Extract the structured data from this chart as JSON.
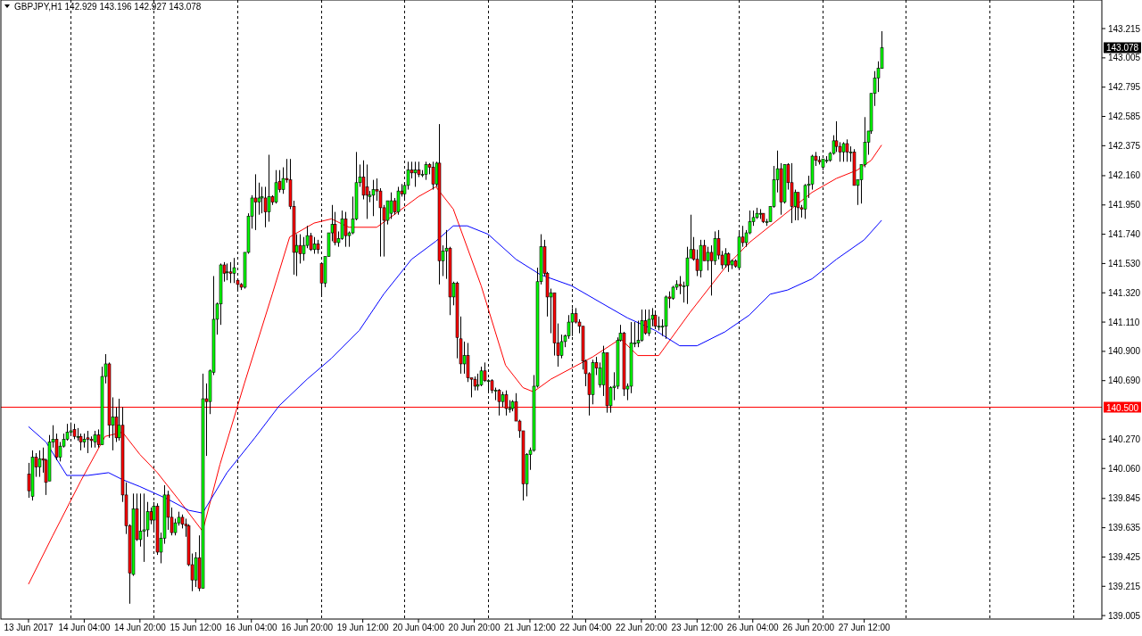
{
  "chart_data": {
    "type": "candlestick",
    "title": "GBPJPY,H1 142.929 143.196 142.927 143.078",
    "categories": [
      "13 Jun 2017",
      null,
      null,
      null,
      null,
      null,
      null,
      null,
      null,
      null,
      null,
      null,
      null,
      null,
      null,
      null,
      "14 Jun 04:00",
      null,
      null,
      null,
      null,
      null,
      null,
      null,
      null,
      null,
      null,
      null,
      null,
      null,
      null,
      null,
      "14 Jun 20:00",
      null,
      null,
      null,
      null,
      null,
      null,
      null,
      null,
      null,
      null,
      null,
      null,
      null,
      null,
      null,
      "15 Jun 12:00",
      null,
      null,
      null,
      null,
      null,
      null,
      null,
      null,
      null,
      null,
      null,
      null,
      null,
      null,
      null,
      "16 Jun 04:00",
      null,
      null,
      null,
      null,
      null,
      null,
      null,
      null,
      null,
      null,
      null,
      null,
      null,
      null,
      null,
      "16 Jun 20:00",
      null,
      null,
      null,
      null,
      null,
      null,
      null,
      null,
      null,
      null,
      null,
      null,
      null,
      null,
      null,
      "19 Jun 12:00",
      null,
      null,
      null,
      null,
      null,
      null,
      null,
      null,
      null,
      null,
      null,
      null,
      null,
      null,
      null,
      "20 Jun 04:00",
      null,
      null,
      null,
      null,
      null,
      null,
      null,
      null,
      null,
      null,
      null,
      null,
      null,
      null,
      null,
      "20 Jun 20:00",
      null,
      null,
      null,
      null,
      null,
      null,
      null,
      null,
      null,
      null,
      null,
      null,
      null,
      null,
      null,
      "21 Jun 12:00",
      null,
      null,
      null,
      null,
      null,
      null,
      null,
      null,
      null,
      null,
      null,
      null,
      null,
      null,
      null,
      "22 Jun 04:00",
      null,
      null,
      null,
      null,
      null,
      null,
      null,
      null,
      null,
      null,
      null,
      null,
      null,
      null,
      null,
      "22 Jun 20:00",
      null,
      null,
      null,
      null,
      null,
      null,
      null,
      null,
      null,
      null,
      null,
      null,
      null,
      null,
      null,
      "23 Jun 12:00",
      null,
      null,
      null,
      null,
      null,
      null,
      null,
      null,
      null,
      null,
      null,
      null,
      null,
      null,
      null,
      "26 Jun 04:00",
      null,
      null,
      null,
      null,
      null,
      null,
      null,
      null,
      null,
      null,
      null,
      null,
      null,
      null,
      null,
      "26 Jun 20:00",
      null,
      null,
      null,
      null,
      null,
      null,
      null,
      null,
      null,
      null,
      null,
      null,
      null,
      null,
      null,
      "27 Jun 12:00",
      null,
      null,
      null,
      null,
      null,
      null,
      null,
      null,
      null,
      null,
      null,
      null,
      null,
      null,
      null,
      null,
      null,
      null,
      null,
      null,
      null,
      null,
      null,
      null,
      null,
      null,
      null,
      null,
      null,
      null,
      null,
      null,
      null,
      null,
      null,
      null,
      null,
      null,
      null,
      null,
      null,
      null,
      null,
      null,
      null,
      null,
      null,
      null,
      null,
      null,
      null,
      null,
      null,
      null,
      null,
      null,
      null,
      null,
      null,
      null,
      null,
      null,
      null,
      null,
      null,
      null,
      null,
      null
    ],
    "ohlc": [
      [
        140.02,
        140.1,
        139.85,
        139.9
      ],
      [
        139.86,
        140.19,
        139.83,
        140.14
      ],
      [
        140.14,
        140.17,
        140.0,
        140.07
      ],
      [
        140.07,
        140.19,
        140.0,
        140.13
      ],
      [
        140.13,
        140.21,
        140.03,
        140.12
      ],
      [
        140.12,
        140.13,
        139.87,
        139.96
      ],
      [
        139.97,
        140.3,
        139.97,
        140.25
      ],
      [
        140.25,
        140.37,
        140.21,
        140.27
      ],
      [
        140.27,
        140.31,
        140.12,
        140.14
      ],
      [
        140.14,
        140.25,
        140.11,
        140.22
      ],
      [
        140.22,
        140.31,
        140.21,
        140.27
      ],
      [
        140.27,
        140.38,
        140.26,
        140.32
      ],
      [
        140.32,
        140.39,
        140.3,
        140.33
      ],
      [
        140.34,
        140.38,
        140.27,
        140.29
      ],
      [
        140.29,
        140.35,
        140.26,
        140.29
      ],
      [
        140.29,
        140.31,
        140.19,
        140.25
      ],
      [
        140.25,
        140.31,
        140.21,
        140.27
      ],
      [
        140.28,
        140.33,
        140.17,
        140.27
      ],
      [
        140.27,
        140.29,
        140.21,
        140.26
      ],
      [
        140.25,
        140.33,
        140.21,
        140.3
      ],
      [
        140.3,
        140.34,
        140.21,
        140.23
      ],
      [
        140.23,
        140.79,
        140.23,
        140.72
      ],
      [
        140.72,
        140.88,
        140.67,
        140.81
      ],
      [
        140.81,
        140.82,
        140.28,
        140.37
      ],
      [
        140.37,
        140.57,
        140.19,
        140.43
      ],
      [
        140.43,
        140.5,
        140.25,
        140.28
      ],
      [
        140.28,
        140.56,
        140.26,
        140.37
      ],
      [
        140.37,
        140.5,
        139.82,
        139.87
      ],
      [
        139.87,
        139.96,
        139.59,
        139.65
      ],
      [
        139.65,
        139.66,
        139.09,
        139.31
      ],
      [
        139.3,
        139.88,
        139.29,
        139.77
      ],
      [
        139.77,
        139.88,
        139.54,
        139.55
      ],
      [
        139.55,
        139.88,
        139.5,
        139.61
      ],
      [
        139.61,
        139.88,
        139.39,
        139.62
      ],
      [
        139.62,
        139.82,
        139.57,
        139.75
      ],
      [
        139.75,
        139.78,
        139.66,
        139.69
      ],
      [
        139.69,
        139.82,
        139.62,
        139.79
      ],
      [
        139.79,
        139.81,
        139.44,
        139.46
      ],
      [
        139.46,
        139.6,
        139.38,
        139.56
      ],
      [
        139.56,
        139.94,
        139.52,
        139.87
      ],
      [
        139.87,
        139.9,
        139.62,
        139.71
      ],
      [
        139.71,
        139.78,
        139.58,
        139.6
      ],
      [
        139.6,
        139.7,
        139.58,
        139.67
      ],
      [
        139.67,
        139.75,
        139.65,
        139.71
      ],
      [
        139.71,
        139.73,
        139.63,
        139.66
      ],
      [
        139.66,
        139.7,
        139.57,
        139.65
      ],
      [
        139.65,
        139.66,
        139.36,
        139.37
      ],
      [
        139.37,
        139.45,
        139.18,
        139.26
      ],
      [
        139.26,
        139.46,
        139.21,
        139.42
      ],
      [
        139.42,
        139.58,
        139.18,
        139.2
      ],
      [
        139.2,
        140.74,
        139.2,
        140.56
      ],
      [
        140.56,
        140.67,
        140.15,
        140.54
      ],
      [
        140.54,
        140.77,
        140.45,
        140.76
      ],
      [
        140.75,
        141.44,
        140.73,
        141.13
      ],
      [
        141.13,
        141.25,
        141.02,
        141.24
      ],
      [
        141.24,
        141.53,
        141.09,
        141.52
      ],
      [
        141.52,
        141.54,
        141.4,
        141.46
      ],
      [
        141.47,
        141.53,
        141.41,
        141.47
      ],
      [
        141.47,
        141.54,
        141.39,
        141.46
      ],
      [
        141.46,
        141.57,
        141.39,
        141.5
      ],
      [
        141.41,
        141.42,
        141.33,
        141.38
      ],
      [
        141.38,
        141.39,
        141.34,
        141.36
      ],
      [
        141.36,
        141.61,
        141.35,
        141.61
      ],
      [
        141.61,
        141.89,
        141.6,
        141.87
      ],
      [
        141.87,
        142.02,
        141.78,
        142.0
      ],
      [
        142.0,
        142.17,
        141.77,
        141.97
      ],
      [
        141.97,
        142.11,
        141.88,
        142.0
      ],
      [
        142.0,
        142.08,
        141.89,
        142.01
      ],
      [
        142.0,
        142.08,
        141.79,
        141.9
      ],
      [
        141.9,
        142.31,
        141.83,
        142.01
      ],
      [
        142.01,
        142.02,
        141.95,
        141.97
      ],
      [
        141.97,
        142.2,
        141.96,
        142.11
      ],
      [
        142.12,
        142.2,
        142.04,
        142.06
      ],
      [
        142.06,
        142.22,
        142.03,
        142.14
      ],
      [
        142.14,
        142.28,
        142.11,
        142.13
      ],
      [
        142.13,
        142.28,
        141.92,
        141.94
      ],
      [
        141.94,
        141.98,
        141.45,
        141.61
      ],
      [
        141.61,
        141.74,
        141.44,
        141.66
      ],
      [
        141.66,
        141.74,
        141.53,
        141.6
      ],
      [
        141.6,
        141.72,
        141.55,
        141.66
      ],
      [
        141.66,
        141.8,
        141.64,
        141.73
      ],
      [
        141.73,
        141.75,
        141.62,
        141.63
      ],
      [
        141.63,
        141.72,
        141.6,
        141.67
      ],
      [
        141.67,
        141.7,
        141.6,
        141.63
      ],
      [
        141.53,
        141.53,
        141.3,
        141.39
      ],
      [
        141.39,
        141.58,
        141.36,
        141.58
      ],
      [
        141.58,
        141.75,
        141.58,
        141.75
      ],
      [
        141.75,
        141.95,
        141.69,
        141.81
      ],
      [
        141.81,
        141.9,
        141.66,
        141.68
      ],
      [
        141.68,
        141.76,
        141.65,
        141.71
      ],
      [
        141.71,
        141.91,
        141.7,
        141.85
      ],
      [
        141.85,
        141.9,
        141.65,
        141.73
      ],
      [
        141.73,
        141.76,
        141.65,
        141.75
      ],
      [
        141.75,
        142.01,
        141.74,
        141.85
      ],
      [
        141.85,
        142.33,
        141.84,
        142.11
      ],
      [
        142.11,
        142.24,
        142.08,
        142.15
      ],
      [
        142.15,
        142.27,
        141.99,
        142.02
      ],
      [
        142.08,
        142.24,
        141.85,
        142.02
      ],
      [
        142.01,
        142.05,
        141.97,
        142.02
      ],
      [
        142.02,
        142.13,
        141.87,
        142.06
      ],
      [
        142.06,
        142.14,
        141.98,
        142.05
      ],
      [
        142.05,
        142.07,
        141.58,
        141.93
      ],
      [
        141.93,
        141.95,
        141.58,
        141.84
      ],
      [
        141.84,
        141.98,
        141.81,
        141.98
      ],
      [
        141.89,
        142.04,
        141.85,
        141.98
      ],
      [
        141.98,
        142.0,
        141.88,
        141.9
      ],
      [
        141.9,
        142.08,
        141.88,
        142.05
      ],
      [
        142.05,
        142.1,
        142.01,
        142.03
      ],
      [
        142.03,
        142.1,
        142.0,
        142.09
      ],
      [
        142.09,
        142.26,
        142.06,
        142.2
      ],
      [
        142.2,
        142.26,
        142.14,
        142.18
      ],
      [
        142.18,
        142.26,
        142.08,
        142.2
      ],
      [
        142.2,
        142.26,
        142.15,
        142.17
      ],
      [
        142.17,
        142.2,
        142.15,
        142.17
      ],
      [
        142.17,
        142.26,
        142.13,
        142.24
      ],
      [
        142.24,
        142.25,
        142.17,
        142.22
      ],
      [
        142.22,
        142.26,
        142.06,
        142.1
      ],
      [
        142.1,
        142.26,
        142.08,
        142.25
      ],
      [
        142.25,
        142.53,
        141.38,
        141.55
      ],
      [
        141.55,
        141.66,
        141.44,
        141.62
      ],
      [
        141.62,
        141.77,
        141.42,
        141.64
      ],
      [
        141.64,
        141.65,
        141.16,
        141.29
      ],
      [
        141.29,
        141.4,
        141.23,
        141.39
      ],
      [
        141.39,
        141.4,
        140.85,
        141.0
      ],
      [
        140.99,
        141.15,
        140.74,
        140.81
      ],
      [
        140.81,
        140.97,
        140.74,
        140.87
      ],
      [
        140.87,
        140.96,
        140.68,
        140.71
      ],
      [
        140.71,
        140.71,
        140.57,
        140.7
      ],
      [
        140.7,
        140.72,
        140.62,
        140.65
      ],
      [
        140.65,
        140.74,
        140.62,
        140.66
      ],
      [
        140.66,
        140.79,
        140.65,
        140.76
      ],
      [
        140.76,
        140.82,
        140.68,
        140.69
      ],
      [
        140.69,
        140.7,
        140.6,
        140.69
      ],
      [
        140.69,
        140.7,
        140.6,
        140.62
      ],
      [
        140.62,
        140.64,
        140.55,
        140.62
      ],
      [
        140.62,
        140.63,
        140.44,
        140.54
      ],
      [
        140.54,
        140.61,
        140.5,
        140.59
      ],
      [
        140.59,
        140.62,
        140.44,
        140.49
      ],
      [
        140.49,
        140.55,
        140.46,
        140.49
      ],
      [
        140.49,
        140.55,
        140.47,
        140.54
      ],
      [
        140.54,
        140.6,
        140.4,
        140.4
      ],
      [
        140.4,
        140.41,
        140.28,
        140.33
      ],
      [
        140.33,
        140.33,
        139.83,
        139.95
      ],
      [
        139.95,
        140.17,
        139.86,
        140.16
      ],
      [
        140.16,
        140.21,
        140.05,
        140.19
      ],
      [
        140.19,
        140.73,
        140.18,
        140.65
      ],
      [
        140.65,
        141.5,
        140.64,
        141.4
      ],
      [
        141.4,
        141.74,
        141.38,
        141.65
      ],
      [
        141.65,
        141.7,
        141.44,
        141.46
      ],
      [
        141.46,
        141.47,
        141.15,
        141.29
      ],
      [
        141.29,
        141.35,
        141.03,
        141.32
      ],
      [
        141.32,
        141.32,
        140.87,
        140.96
      ],
      [
        140.96,
        141.1,
        140.79,
        140.87
      ],
      [
        140.87,
        141.02,
        140.85,
        140.97
      ],
      [
        140.97,
        141.02,
        140.93,
        141.01
      ],
      [
        141.01,
        141.16,
        140.99,
        141.11
      ],
      [
        141.11,
        141.21,
        141.01,
        141.17
      ],
      [
        141.17,
        141.21,
        141.1,
        141.11
      ],
      [
        141.11,
        141.13,
        141.03,
        141.08
      ],
      [
        141.08,
        141.08,
        140.77,
        140.83
      ],
      [
        140.83,
        140.84,
        140.65,
        140.74
      ],
      [
        140.74,
        140.75,
        140.44,
        140.59
      ],
      [
        140.59,
        140.84,
        140.52,
        140.82
      ],
      [
        140.82,
        140.86,
        140.73,
        140.78
      ],
      [
        140.66,
        140.82,
        140.64,
        140.78
      ],
      [
        140.66,
        140.94,
        140.58,
        140.89
      ],
      [
        140.89,
        140.89,
        140.46,
        140.51
      ],
      [
        140.51,
        140.65,
        140.46,
        140.64
      ],
      [
        140.64,
        140.75,
        140.55,
        140.65
      ],
      [
        140.65,
        141.0,
        140.63,
        140.98
      ],
      [
        140.98,
        141.09,
        140.97,
        141.03
      ],
      [
        141.03,
        141.04,
        140.58,
        140.63
      ],
      [
        140.63,
        140.67,
        140.55,
        140.65
      ],
      [
        140.65,
        141.11,
        140.6,
        140.96
      ],
      [
        140.96,
        141.11,
        140.93,
        140.96
      ],
      [
        140.96,
        141.12,
        140.93,
        140.98
      ],
      [
        140.98,
        141.2,
        140.97,
        141.12
      ],
      [
        141.12,
        141.2,
        141.02,
        141.03
      ],
      [
        141.03,
        141.2,
        141.01,
        141.13
      ],
      [
        141.13,
        141.21,
        141.08,
        141.16
      ],
      [
        141.16,
        141.18,
        141.07,
        141.08
      ],
      [
        141.08,
        141.15,
        141.05,
        141.08
      ],
      [
        141.08,
        141.13,
        141.01,
        141.08
      ],
      [
        141.08,
        141.3,
        140.99,
        141.29
      ],
      [
        141.29,
        141.33,
        141.21,
        141.28
      ],
      [
        141.28,
        141.37,
        141.27,
        141.36
      ],
      [
        141.36,
        141.41,
        141.34,
        141.38
      ],
      [
        141.38,
        141.44,
        141.31,
        141.37
      ],
      [
        141.37,
        141.4,
        141.25,
        141.37
      ],
      [
        141.37,
        141.65,
        141.24,
        141.57
      ],
      [
        141.57,
        141.88,
        141.57,
        141.63
      ],
      [
        141.63,
        141.72,
        141.55,
        141.56
      ],
      [
        141.56,
        141.63,
        141.44,
        141.48
      ],
      [
        141.48,
        141.7,
        141.43,
        141.66
      ],
      [
        141.66,
        141.7,
        141.55,
        141.55
      ],
      [
        141.55,
        141.65,
        141.48,
        141.61
      ],
      [
        141.61,
        141.66,
        141.3,
        141.55
      ],
      [
        141.55,
        141.76,
        141.52,
        141.71
      ],
      [
        141.71,
        141.77,
        141.56,
        141.59
      ],
      [
        141.59,
        141.62,
        141.49,
        141.52
      ],
      [
        141.52,
        141.64,
        141.5,
        141.6
      ],
      [
        141.6,
        141.61,
        141.47,
        141.52
      ],
      [
        141.52,
        141.56,
        141.49,
        141.55
      ],
      [
        141.55,
        141.56,
        141.5,
        141.51
      ],
      [
        141.5,
        141.76,
        141.49,
        141.72
      ],
      [
        141.72,
        141.8,
        141.65,
        141.68
      ],
      [
        141.68,
        141.77,
        141.65,
        141.75
      ],
      [
        141.75,
        141.91,
        141.74,
        141.83
      ],
      [
        141.83,
        141.91,
        141.8,
        141.86
      ],
      [
        141.86,
        141.93,
        141.85,
        141.89
      ],
      [
        141.89,
        141.92,
        141.85,
        141.89
      ],
      [
        141.89,
        141.89,
        141.82,
        141.83
      ],
      [
        141.83,
        141.85,
        141.8,
        141.83
      ],
      [
        141.83,
        141.94,
        141.83,
        141.94
      ],
      [
        141.94,
        142.23,
        141.93,
        142.13
      ],
      [
        142.13,
        142.34,
        142.04,
        142.21
      ],
      [
        142.21,
        142.25,
        141.88,
        141.97
      ],
      [
        141.97,
        142.24,
        141.96,
        142.24
      ],
      [
        142.24,
        142.25,
        142.06,
        142.11
      ],
      [
        142.11,
        142.25,
        141.82,
        141.94
      ],
      [
        141.94,
        142.06,
        141.84,
        142.04
      ],
      [
        142.04,
        142.04,
        141.84,
        141.93
      ],
      [
        141.93,
        141.95,
        141.86,
        141.92
      ],
      [
        141.92,
        142.1,
        141.85,
        142.09
      ],
      [
        142.09,
        142.16,
        142.0,
        142.1
      ],
      [
        142.1,
        142.31,
        142.06,
        142.3
      ],
      [
        142.3,
        142.33,
        142.23,
        142.27
      ],
      [
        142.27,
        142.3,
        142.24,
        142.26
      ],
      [
        142.22,
        142.28,
        142.2,
        142.28
      ],
      [
        142.27,
        142.3,
        142.25,
        142.27
      ],
      [
        142.27,
        142.33,
        142.26,
        142.32
      ],
      [
        142.32,
        142.45,
        142.31,
        142.41
      ],
      [
        142.41,
        142.55,
        142.33,
        142.37
      ],
      [
        142.37,
        142.4,
        142.26,
        142.33
      ],
      [
        142.33,
        142.4,
        142.26,
        142.39
      ],
      [
        142.39,
        142.42,
        142.26,
        142.33
      ],
      [
        142.33,
        142.37,
        142.26,
        142.33
      ],
      [
        142.33,
        142.35,
        142.09,
        142.09
      ],
      [
        142.09,
        142.13,
        141.95,
        142.13
      ],
      [
        142.13,
        142.24,
        141.96,
        142.24
      ],
      [
        142.24,
        142.58,
        142.22,
        142.4
      ],
      [
        142.4,
        142.48,
        142.31,
        142.48
      ],
      [
        142.48,
        142.75,
        142.46,
        142.75
      ],
      [
        142.75,
        142.91,
        142.66,
        142.86
      ],
      [
        142.86,
        142.98,
        142.76,
        142.93
      ],
      [
        142.929,
        143.196,
        142.927,
        143.078
      ],
      null,
      null,
      null,
      null,
      null,
      null,
      null,
      null,
      null,
      null,
      null,
      null,
      null,
      null,
      null,
      null,
      null,
      null,
      null,
      null,
      null,
      null,
      null,
      null,
      null,
      null,
      null,
      null,
      null,
      null,
      null,
      null,
      null,
      null,
      null,
      null,
      null,
      null,
      null,
      null,
      null,
      null,
      null,
      null,
      null,
      null,
      null,
      null,
      null,
      null,
      null,
      null,
      null,
      null,
      null,
      null,
      null,
      null,
      null,
      null,
      null,
      null,
      null
    ],
    "series": [
      {
        "type": "line",
        "color": "#ff0000",
        "values": [
          139.23,
          null,
          null,
          null,
          null,
          null,
          null,
          139.58,
          null,
          null,
          null,
          null,
          null,
          null,
          null,
          139.97,
          null,
          null,
          null,
          null,
          null,
          null,
          140.29,
          null,
          null,
          null,
          null,
          140.32,
          null,
          null,
          null,
          null,
          140.16,
          null,
          null,
          null,
          null,
          140.03,
          null,
          null,
          null,
          null,
          null,
          139.84,
          null,
          null,
          null,
          null,
          null,
          null,
          139.61,
          null,
          null,
          null,
          null,
          140.09,
          null,
          null,
          null,
          null,
          null,
          null,
          140.67,
          null,
          null,
          null,
          null,
          null,
          null,
          null,
          141.31,
          null,
          null,
          null,
          null,
          141.72,
          null,
          null,
          null,
          null,
          null,
          null,
          141.82,
          null,
          null,
          null,
          null,
          141.85,
          null,
          null,
          null,
          null,
          141.79,
          null,
          null,
          null,
          null,
          null,
          null,
          null,
          141.79,
          null,
          null,
          null,
          null,
          141.88,
          null,
          null,
          null,
          null,
          null,
          null,
          142.01,
          null,
          null,
          null,
          null,
          142.08,
          null,
          null,
          null,
          null,
          141.92,
          null,
          null,
          null,
          null,
          null,
          null,
          null,
          141.37,
          null,
          null,
          null,
          null,
          null,
          null,
          140.8,
          null,
          null,
          null,
          null,
          140.64,
          null,
          null,
          140.61,
          null,
          null,
          null,
          null,
          140.7,
          null,
          null,
          null,
          null,
          null,
          null,
          null,
          null,
          null,
          null,
          null,
          140.86,
          null,
          null,
          null,
          null,
          null,
          null,
          null,
          140.99,
          null,
          null,
          null,
          null,
          140.87,
          null,
          null,
          null,
          null,
          null,
          140.87,
          null,
          null,
          null,
          null,
          null,
          null,
          null,
          null,
          141.18,
          null,
          null,
          null,
          null,
          null,
          null,
          null,
          null,
          null,
          141.5,
          null,
          null,
          null,
          null,
          null,
          null,
          141.68,
          null,
          null,
          null,
          null,
          null,
          null,
          null,
          null,
          null,
          141.88,
          null,
          null,
          null,
          null,
          null,
          null,
          null,
          142.04,
          null,
          null,
          null,
          null,
          null,
          null,
          142.14,
          null,
          null,
          null,
          null,
          null,
          142.2,
          null,
          null,
          null,
          142.27,
          null,
          null,
          142.38,
          null,
          null,
          null,
          null,
          null,
          null,
          null,
          null,
          null,
          null,
          null,
          null,
          null,
          null,
          null,
          null,
          null,
          null,
          null,
          null,
          null,
          null,
          null,
          null,
          null,
          null,
          null,
          null,
          null,
          null,
          null,
          null,
          null,
          null,
          null,
          null,
          null,
          null,
          null,
          null,
          null,
          null,
          null,
          null,
          null,
          null,
          null,
          null,
          null,
          null,
          null,
          null,
          null,
          null,
          null,
          null,
          null,
          null,
          null,
          null,
          null,
          null,
          null
        ]
      },
      {
        "type": "line",
        "color": "#0000ff",
        "values": [
          140.36,
          null,
          null,
          null,
          null,
          140.25,
          null,
          null,
          null,
          null,
          null,
          140.01,
          null,
          null,
          null,
          null,
          null,
          140.01,
          null,
          null,
          null,
          null,
          null,
          140.03,
          null,
          null,
          null,
          139.98,
          null,
          null,
          null,
          null,
          139.93,
          null,
          null,
          null,
          null,
          null,
          null,
          null,
          139.84,
          null,
          null,
          null,
          null,
          null,
          139.76,
          null,
          null,
          null,
          139.74,
          null,
          null,
          null,
          null,
          null,
          null,
          140.03,
          null,
          null,
          null,
          null,
          null,
          null,
          null,
          140.28,
          null,
          null,
          null,
          null,
          null,
          null,
          140.51,
          null,
          null,
          null,
          null,
          null,
          null,
          null,
          140.7,
          null,
          null,
          null,
          null,
          null,
          null,
          140.85,
          null,
          null,
          null,
          null,
          null,
          null,
          null,
          141.05,
          null,
          null,
          null,
          null,
          null,
          null,
          141.31,
          null,
          null,
          null,
          null,
          null,
          null,
          null,
          141.56,
          null,
          null,
          null,
          null,
          null,
          null,
          141.69,
          null,
          null,
          null,
          null,
          141.8,
          null,
          null,
          null,
          141.8,
          null,
          null,
          null,
          null,
          null,
          141.74,
          null,
          null,
          null,
          null,
          null,
          null,
          null,
          141.56,
          null,
          null,
          null,
          null,
          null,
          null,
          141.45,
          null,
          null,
          null,
          null,
          null,
          null,
          null,
          null,
          141.37,
          null,
          null,
          null,
          null,
          null,
          null,
          null,
          null,
          141.24,
          null,
          null,
          null,
          null,
          null,
          null,
          141.14,
          null,
          null,
          null,
          null,
          null,
          null,
          null,
          141.05,
          null,
          null,
          null,
          null,
          null,
          null,
          140.94,
          null,
          null,
          null,
          null,
          140.94,
          null,
          null,
          null,
          null,
          null,
          null,
          null,
          141.04,
          null,
          null,
          null,
          null,
          null,
          null,
          141.16,
          null,
          null,
          null,
          null,
          null,
          141.31,
          null,
          null,
          null,
          null,
          141.34,
          null,
          null,
          null,
          null,
          null,
          null,
          141.42,
          null,
          null,
          null,
          null,
          null,
          null,
          141.56,
          null,
          null,
          null,
          null,
          null,
          null,
          null,
          141.7,
          null,
          null,
          null,
          null,
          141.84,
          null,
          null,
          null,
          null,
          null,
          null,
          null,
          null,
          null,
          null,
          null,
          null,
          null,
          null,
          null,
          null,
          null,
          null,
          null,
          null,
          null,
          null,
          null,
          null,
          null,
          null,
          null,
          null,
          null,
          null,
          null,
          null,
          null,
          null,
          null,
          null,
          null,
          null,
          null,
          null,
          null,
          null,
          null,
          null,
          null,
          null,
          null,
          null,
          null,
          null,
          null,
          null,
          null,
          null,
          null,
          null,
          null,
          null,
          null,
          null,
          null,
          null,
          null
        ]
      }
    ],
    "ylim": [
      138.98,
      143.42
    ],
    "yticks": [
      139.005,
      139.215,
      139.425,
      139.635,
      139.845,
      {
        "value": 140.06,
        "label": "140.060"
      },
      {
        "value": 140.27,
        "label": "140.270"
      },
      {
        "value": 140.69,
        "label": "140.690"
      },
      {
        "value": 140.9,
        "label": "140.900"
      },
      {
        "value": 141.11,
        "label": "141.110"
      },
      {
        "value": 141.32,
        "label": "141.320"
      },
      {
        "value": 141.53,
        "label": "141.530"
      },
      {
        "value": 141.74,
        "label": "141.740"
      },
      {
        "value": 141.95,
        "label": "141.950"
      },
      {
        "value": 142.16,
        "label": "142.160"
      },
      142.375,
      142.585,
      142.795,
      143.005,
      143.215
    ],
    "ref_lines": [
      {
        "axis": "y",
        "value": 140.5,
        "label": "140.500",
        "color": "#ff0000"
      }
    ],
    "annotations": [
      "143.078"
    ]
  }
}
